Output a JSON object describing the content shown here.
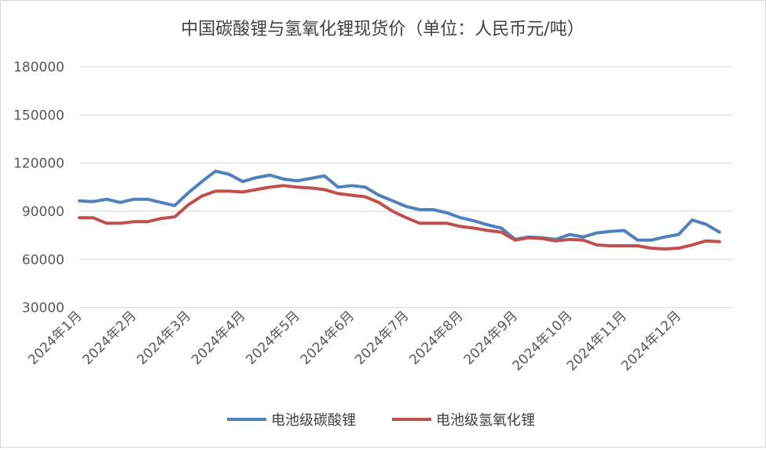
{
  "chart_data": {
    "type": "line",
    "title": "中国碳酸锂与氢氧化锂现货价（单位：人民币元/吨）",
    "xlabel": "",
    "ylabel": "",
    "ylim": [
      0,
      180000
    ],
    "yticks": [
      30000,
      60000,
      90000,
      120000,
      150000,
      180000
    ],
    "grid": true,
    "legend_position": "bottom",
    "month_labels": [
      "2024年1月",
      "2024年2月",
      "2024年3月",
      "2024年4月",
      "2024年5月",
      "2024年6月",
      "2024年7月",
      "2024年8月",
      "2024年9月",
      "2024年10月",
      "2024年11月",
      "2024年12月"
    ],
    "x": [
      0,
      0.25,
      0.5,
      0.75,
      1,
      1.25,
      1.5,
      1.75,
      2,
      2.25,
      2.5,
      2.75,
      3,
      3.25,
      3.5,
      3.75,
      4,
      4.25,
      4.5,
      4.75,
      5,
      5.25,
      5.5,
      5.75,
      6,
      6.25,
      6.5,
      6.75,
      7,
      7.25,
      7.5,
      7.75,
      8,
      8.25,
      8.5,
      8.75,
      9,
      9.25,
      9.5,
      9.75,
      10,
      10.25,
      10.5,
      10.75,
      11,
      11.25,
      11.5,
      11.75
    ],
    "series": [
      {
        "name": "电池级碳酸锂",
        "color": "#4f81bd",
        "values": [
          96500,
          96000,
          97500,
          95500,
          97500,
          97500,
          95500,
          93500,
          101500,
          108500,
          115000,
          113000,
          108500,
          111000,
          112500,
          110000,
          109000,
          110500,
          112000,
          105000,
          106000,
          105000,
          100000,
          96500,
          93000,
          91000,
          91000,
          89000,
          86000,
          84000,
          81500,
          79500,
          72500,
          74000,
          73500,
          72500,
          75500,
          74000,
          76500,
          77500,
          78000,
          72000,
          72000,
          74000,
          75500,
          84500,
          82000,
          77000
        ]
      },
      {
        "name": "电池级氢氧化锂",
        "color": "#c0504d",
        "values": [
          86000,
          86000,
          82500,
          82500,
          83500,
          83500,
          85500,
          86500,
          94000,
          99500,
          102500,
          102500,
          102000,
          103500,
          105000,
          106000,
          105000,
          104500,
          103500,
          101000,
          100000,
          99000,
          95500,
          90000,
          86000,
          82500,
          82500,
          82500,
          80500,
          79500,
          78000,
          77000,
          72000,
          73500,
          73000,
          71500,
          72500,
          72000,
          69000,
          68500,
          68500,
          68500,
          67000,
          66500,
          67000,
          69000,
          71500,
          71000
        ]
      }
    ]
  }
}
